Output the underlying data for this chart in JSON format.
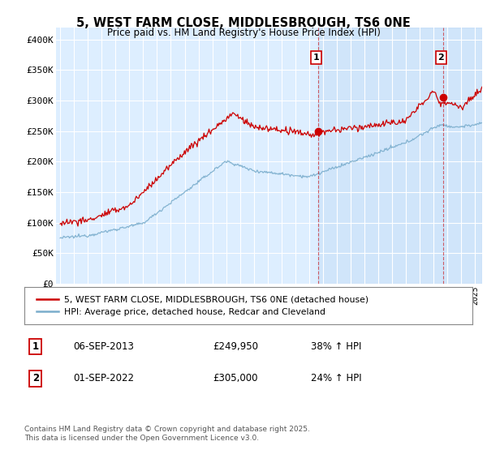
{
  "title": "5, WEST FARM CLOSE, MIDDLESBROUGH, TS6 0NE",
  "subtitle": "Price paid vs. HM Land Registry's House Price Index (HPI)",
  "ylim": [
    0,
    420000
  ],
  "yticks": [
    0,
    50000,
    100000,
    150000,
    200000,
    250000,
    300000,
    350000,
    400000
  ],
  "ytick_labels": [
    "£0",
    "£50K",
    "£100K",
    "£150K",
    "£200K",
    "£250K",
    "£300K",
    "£350K",
    "£400K"
  ],
  "bg_color": "#ddeeff",
  "shade_color": "#cce0ff",
  "grid_color": "#ffffff",
  "red_color": "#cc0000",
  "blue_color": "#7aadcc",
  "legend1_text": "5, WEST FARM CLOSE, MIDDLESBROUGH, TS6 0NE (detached house)",
  "legend2_text": "HPI: Average price, detached house, Redcar and Cleveland",
  "annotation1_date": "06-SEP-2013",
  "annotation1_price": "£249,950",
  "annotation1_hpi": "38% ↑ HPI",
  "annotation2_date": "01-SEP-2022",
  "annotation2_price": "£305,000",
  "annotation2_hpi": "24% ↑ HPI",
  "footer": "Contains HM Land Registry data © Crown copyright and database right 2025.\nThis data is licensed under the Open Government Licence v3.0.",
  "vline_color": "#cc0000",
  "sale1_year": 2013.67,
  "sale2_year": 2022.67,
  "sale1_price": 249950,
  "sale2_price": 305000
}
